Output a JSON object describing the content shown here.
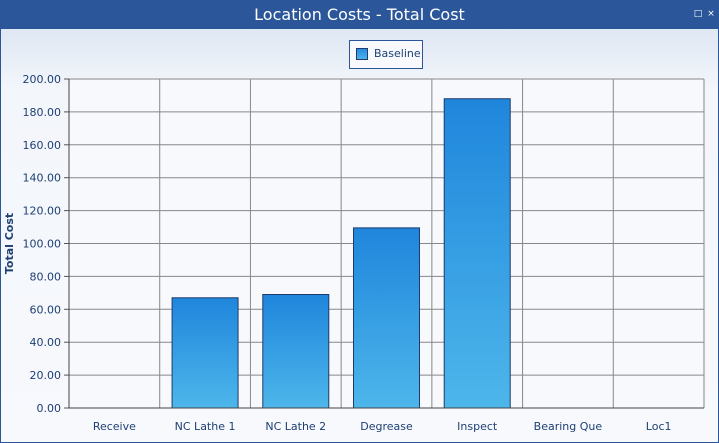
{
  "window": {
    "title": "Location Costs - Total Cost"
  },
  "controls": {
    "restore_icon": "restore-icon",
    "close_icon": "close-icon"
  },
  "legend": {
    "label": "Baseline"
  },
  "colors": {
    "titlebar": "#2b579a",
    "bar_top": "#1f86dc",
    "bar_bottom": "#4db6ea",
    "bar_border": "#1f3b6b",
    "axis_text": "#1e3f73",
    "grid": "#888888"
  },
  "chart_data": {
    "type": "bar",
    "title": "Location Costs - Total Cost",
    "xlabel": "",
    "ylabel": "Total Cost",
    "categories": [
      "Receive",
      "NC Lathe 1",
      "NC Lathe 2",
      "Degrease",
      "Inspect",
      "Bearing Que",
      "Loc1"
    ],
    "series": [
      {
        "name": "Baseline",
        "values": [
          0,
          67,
          69,
          109.5,
          188,
          0,
          0
        ]
      }
    ],
    "ylim": [
      0,
      200
    ],
    "yticks": [
      "0.00",
      "20.00",
      "40.00",
      "60.00",
      "80.00",
      "100.00",
      "120.00",
      "140.00",
      "160.00",
      "180.00",
      "200.00"
    ],
    "grid": true,
    "legend_position": "top-center"
  }
}
